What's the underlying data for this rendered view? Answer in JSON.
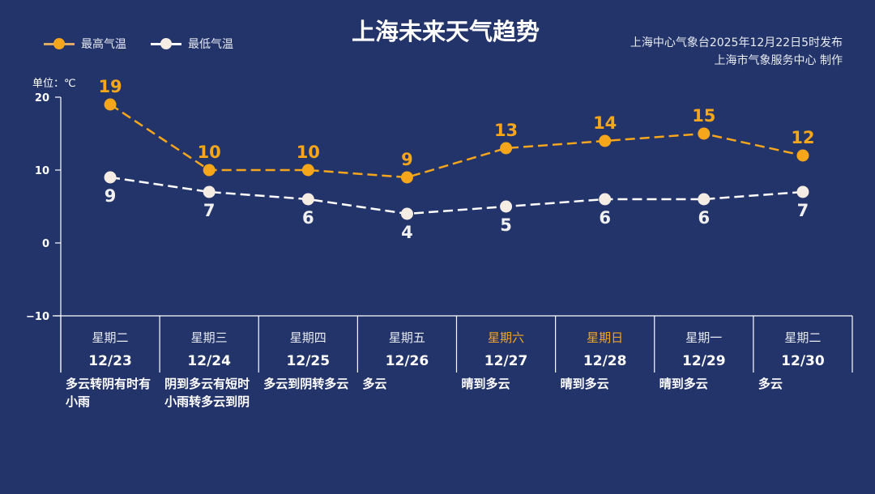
{
  "title": "上海未来天气趋势",
  "source_line1": "上海中心气象台2025年12月22日5时发布",
  "source_line2": "上海市气象服务中心  制作",
  "colors": {
    "high": "#f5a61b",
    "low": "#f5ece4",
    "weekend": "#f5a61b",
    "bg": "#23346a"
  },
  "chart_data": {
    "type": "line",
    "title": "上海未来天气趋势",
    "ylabel": "单位：℃",
    "ylim": [
      -10,
      20
    ],
    "yticks": [
      20,
      10,
      0,
      -10
    ],
    "legend_position": "top-left",
    "categories": [
      "12/23",
      "12/24",
      "12/25",
      "12/26",
      "12/27",
      "12/28",
      "12/29",
      "12/30"
    ],
    "weekdays": [
      "星期二",
      "星期三",
      "星期四",
      "星期五",
      "星期六",
      "星期日",
      "星期一",
      "星期二"
    ],
    "weekend": [
      false,
      false,
      false,
      false,
      true,
      true,
      false,
      false
    ],
    "weather": [
      "多云转阴有时有小雨",
      "阴到多云有短时小雨转多云到阴",
      "多云到阴转多云",
      "多云",
      "晴到多云",
      "晴到多云",
      "晴到多云",
      "多云"
    ],
    "series": [
      {
        "name": "最高气温",
        "values": [
          19,
          10,
          10,
          9,
          13,
          14,
          15,
          12
        ]
      },
      {
        "name": "最低气温",
        "values": [
          9,
          7,
          6,
          4,
          5,
          6,
          6,
          7
        ]
      }
    ]
  }
}
